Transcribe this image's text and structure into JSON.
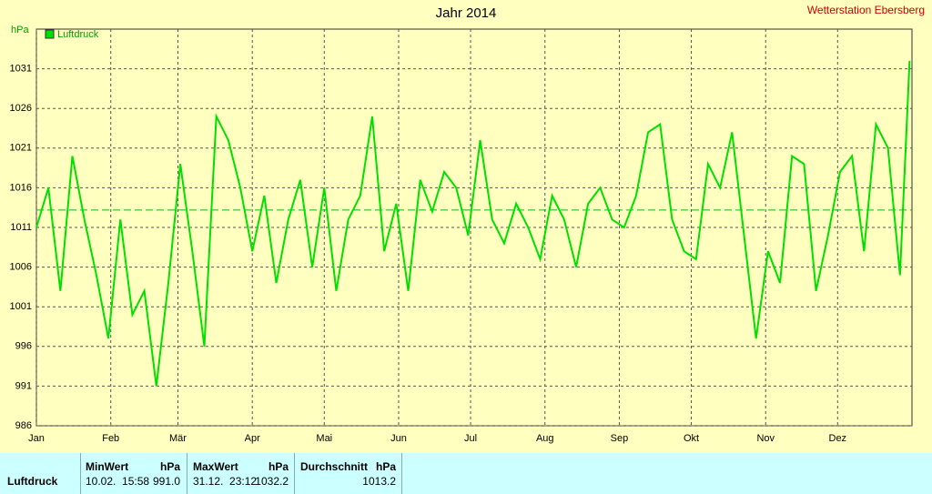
{
  "chart_data": {
    "type": "line",
    "title": "Jahr 2014",
    "station": "Wetterstation Ebersberg",
    "y_label": "hPa",
    "x": [
      0,
      5,
      10,
      15,
      20,
      25,
      30,
      35,
      40,
      45,
      50,
      55,
      60,
      65,
      70,
      75,
      80,
      85,
      90,
      95,
      100,
      105,
      110,
      115,
      120,
      125,
      130,
      135,
      140,
      145,
      150,
      155,
      160,
      165,
      170,
      175,
      180,
      185,
      190,
      195,
      200,
      205,
      210,
      215,
      220,
      225,
      230,
      235,
      240,
      245,
      250,
      255,
      260,
      265,
      270,
      275,
      280,
      285,
      290,
      295,
      300,
      305,
      310,
      315,
      320,
      325,
      330,
      335,
      340,
      345,
      350,
      355,
      360,
      364
    ],
    "series": [
      {
        "name": "Luftdruck",
        "color": "#00e000",
        "values": [
          1011,
          1016,
          1003,
          1020,
          1012,
          1005,
          997,
          1012,
          1000,
          1003,
          991,
          1004,
          1019,
          1008,
          996,
          1025,
          1022,
          1016,
          1008,
          1015,
          1004,
          1012,
          1017,
          1006,
          1016,
          1003,
          1012,
          1015,
          1025,
          1008,
          1014,
          1003,
          1017,
          1013,
          1018,
          1016,
          1010,
          1022,
          1012,
          1009,
          1014,
          1011,
          1007,
          1015,
          1012,
          1006,
          1014,
          1016,
          1012,
          1011,
          1015,
          1023,
          1024,
          1012,
          1008,
          1007,
          1019,
          1016,
          1023,
          1010,
          997,
          1008,
          1004,
          1020,
          1019,
          1003,
          1010,
          1018,
          1020,
          1008,
          1024,
          1021,
          1005,
          1032
        ]
      }
    ],
    "xlim": [
      0,
      365
    ],
    "xticks": [
      {
        "value": 0,
        "label": "Jan"
      },
      {
        "value": 31,
        "label": "Feb"
      },
      {
        "value": 59,
        "label": "Mär"
      },
      {
        "value": 90,
        "label": "Apr"
      },
      {
        "value": 120,
        "label": "Mai"
      },
      {
        "value": 151,
        "label": "Jun"
      },
      {
        "value": 181,
        "label": "Jul"
      },
      {
        "value": 212,
        "label": "Aug"
      },
      {
        "value": 243,
        "label": "Sep"
      },
      {
        "value": 273,
        "label": "Okt"
      },
      {
        "value": 304,
        "label": "Nov"
      },
      {
        "value": 334,
        "label": "Dez"
      }
    ],
    "ylim": [
      986,
      1036
    ],
    "yticks": [
      986,
      991,
      996,
      1001,
      1006,
      1011,
      1016,
      1021,
      1026,
      1031
    ],
    "grid": true
  },
  "table": {
    "headers": [
      "MinWert",
      "hPa",
      "MaxWert",
      "hPa",
      "Durchschnitt",
      "hPa"
    ],
    "rows": [
      {
        "name": "Luftdruck",
        "min_time": "10.02.  15:58",
        "min": "991.0",
        "max_time": "31.12.  23:12",
        "max": 1032.2,
        "avg": 1013.2
      }
    ]
  }
}
